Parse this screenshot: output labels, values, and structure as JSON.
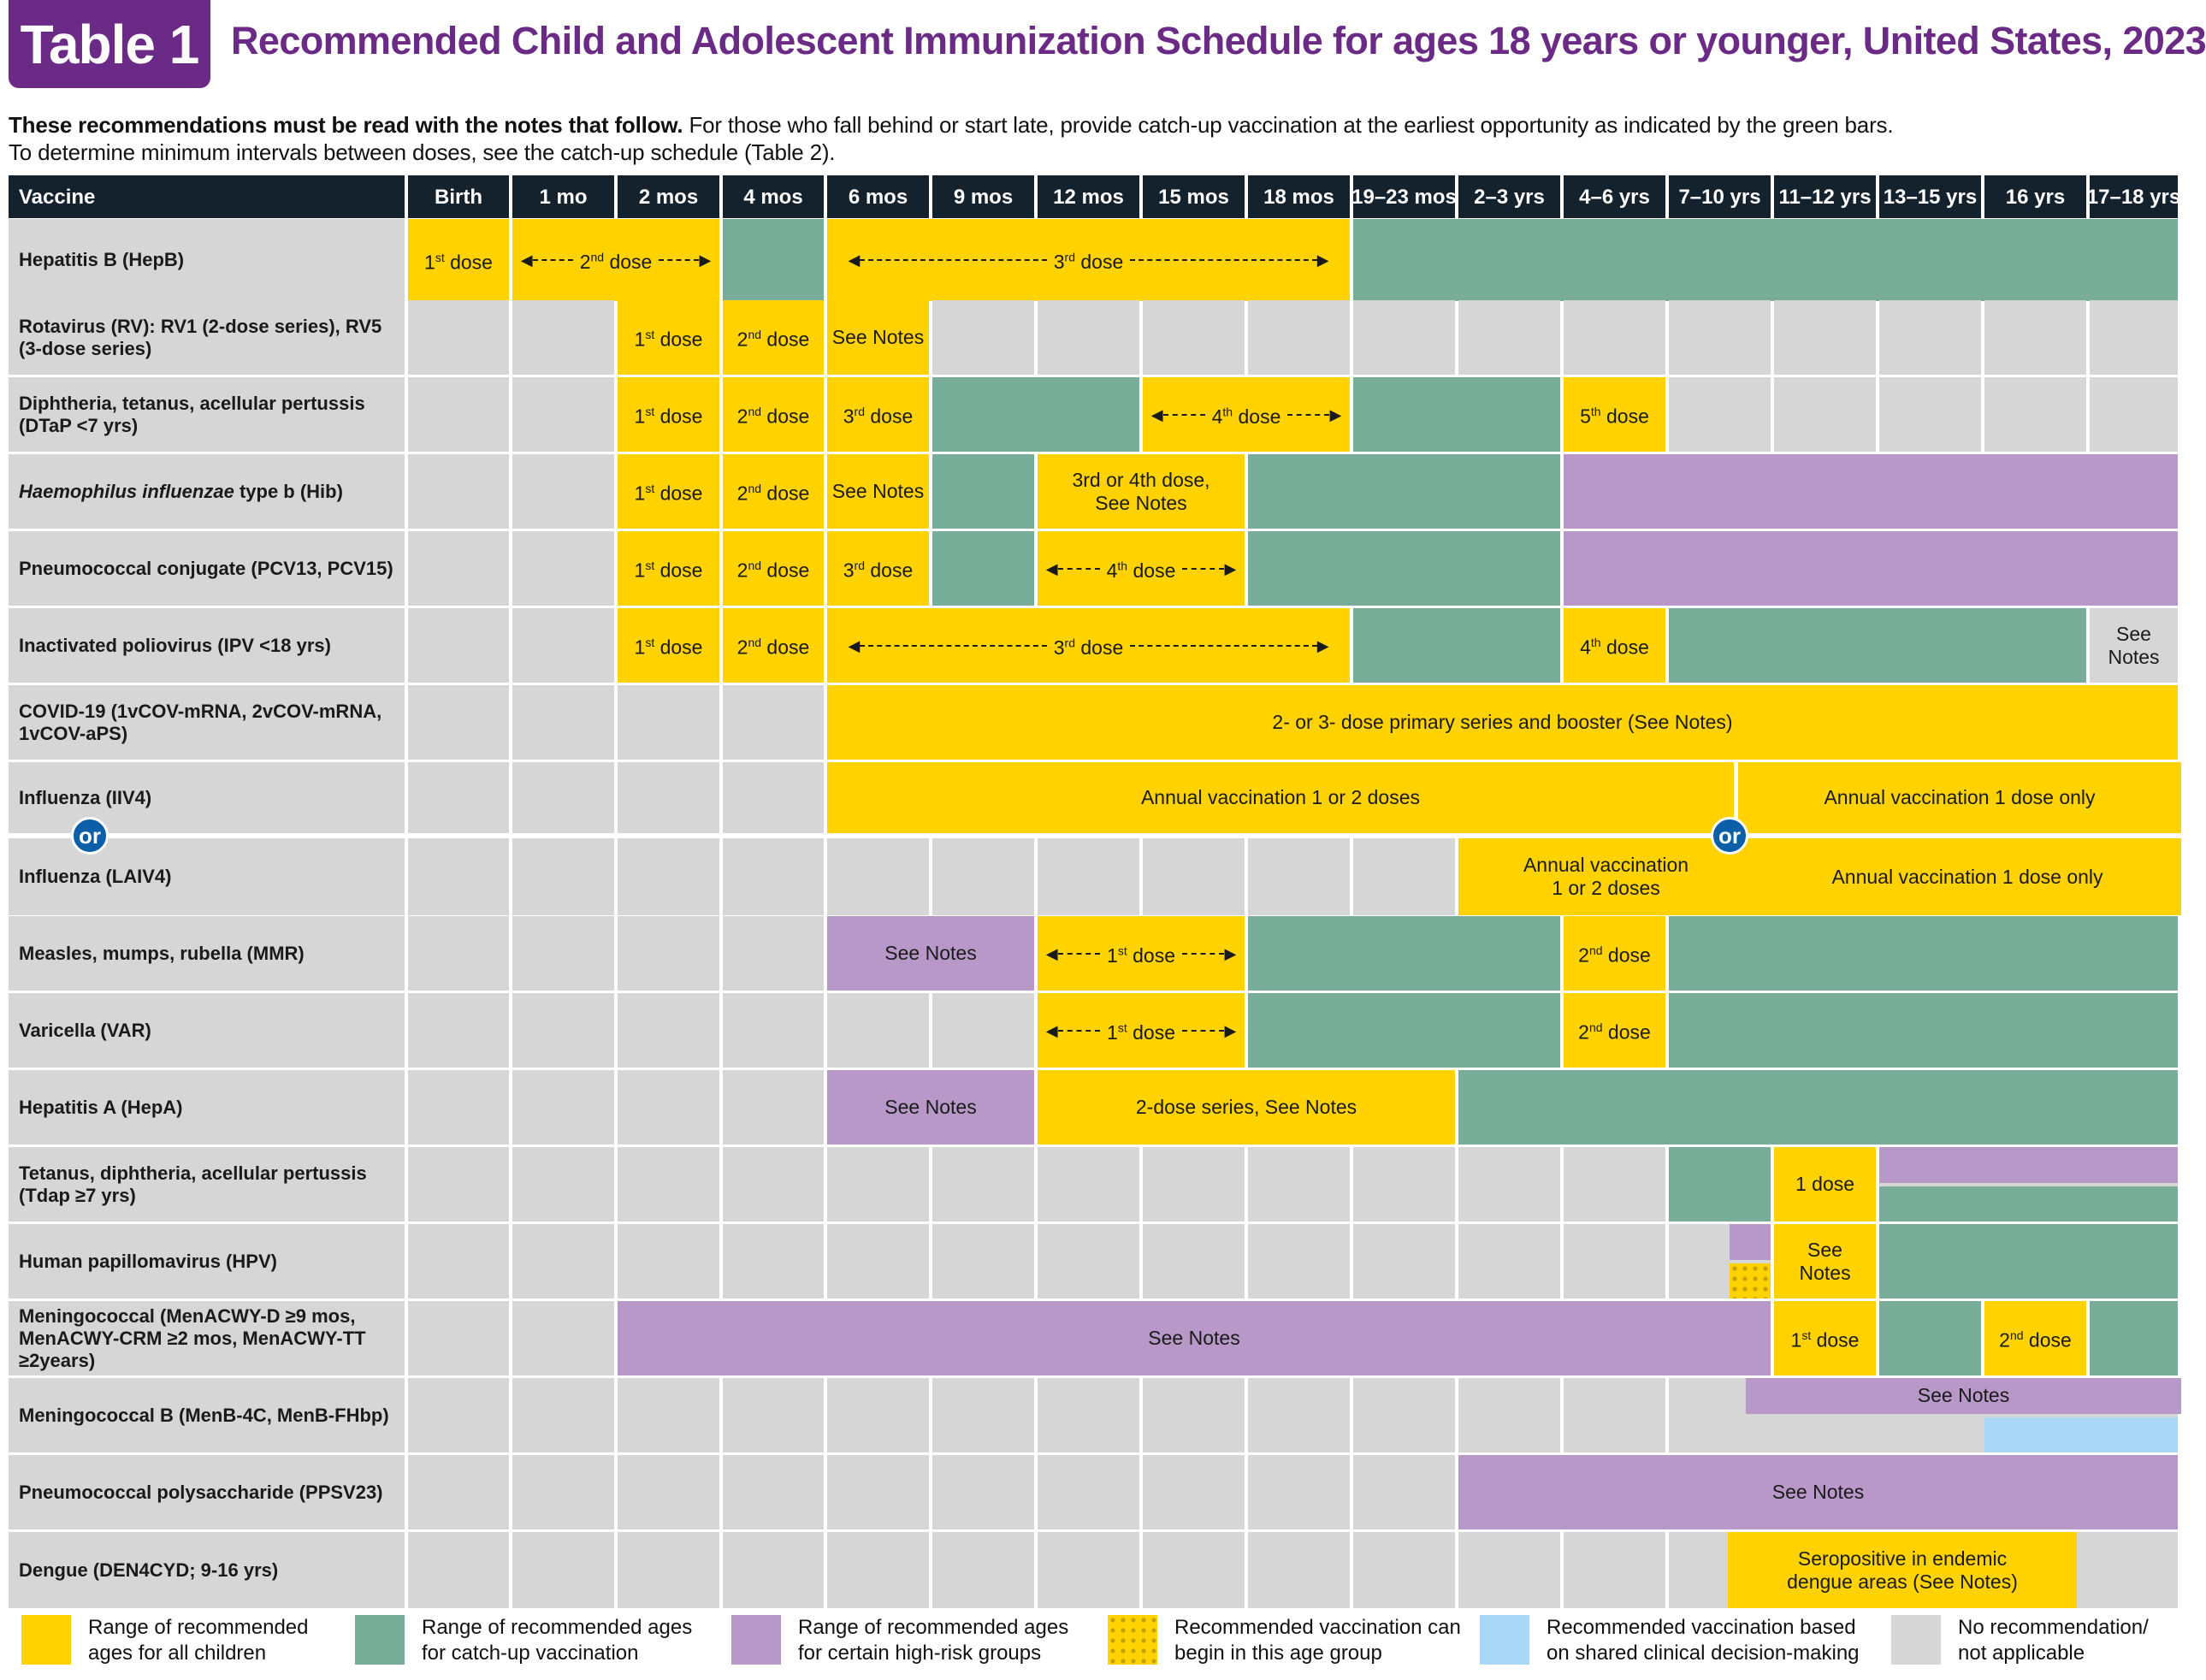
{
  "header": {
    "badge": "Table 1",
    "title": "Recommended Child and Adolescent Immunization Schedule for ages 18 years or younger, United States, 2023",
    "intro_bold": "These recommendations must be read with the notes that follow.",
    "intro_rest": " For those who fall behind or start late, provide catch-up vaccination at the earliest opportunity as indicated by the green bars.",
    "intro_line2": "To determine minimum intervals between doses, see the catch-up schedule (Table 2)."
  },
  "columns": [
    "Vaccine",
    "Birth",
    "1 mo",
    "2 mos",
    "4 mos",
    "6 mos",
    "9 mos",
    "12 mos",
    "15 mos",
    "18 mos",
    "19–23 mos",
    "2–3 yrs",
    "4–6 yrs",
    "7–10 yrs",
    "11–12 yrs",
    "13–15 yrs",
    "16 yrs",
    "17–18 yrs"
  ],
  "vaccines": {
    "hepb": "Hepatitis B (HepB)",
    "rv": "Rotavirus (RV): RV1 (2-dose series), RV5 (3-dose series)",
    "dtap": "Diphtheria, tetanus, acellular pertussis (DTaP <7 yrs)",
    "hib_italic": "Haemophilus influenzae",
    "hib_rest": " type b (Hib)",
    "pcv": "Pneumococcal conjugate (PCV13, PCV15)",
    "ipv": "Inactivated poliovirus (IPV <18 yrs)",
    "covid": "COVID-19 (1vCOV-mRNA, 2vCOV-mRNA, 1vCOV-aPS)",
    "iiv4": "Influenza (IIV4)",
    "laiv4": "Influenza (LAIV4)",
    "mmr": "Measles, mumps, rubella (MMR)",
    "var": "Varicella (VAR)",
    "hepa": "Hepatitis A (HepA)",
    "tdap": "Tetanus, diphtheria, acellular pertussis (Tdap ≥7 yrs)",
    "hpv": "Human papillomavirus (HPV)",
    "menacwy": "Meningococcal (MenACWY-D ≥9 mos, MenACWY-CRM ≥2 mos, MenACWY-TT ≥2years)",
    "menb": "Meningococcal B (MenB-4C, MenB-FHbp)",
    "ppsv": "Pneumococcal polysaccharide (PPSV23)",
    "dengue": "Dengue (DEN4CYD; 9-16 yrs)"
  },
  "labels": {
    "dose1": "1st dose",
    "dose2": "2nd dose",
    "dose3": "3rd dose",
    "dose4": "4th dose",
    "dose5": "5th dose",
    "one_dose": "1 dose",
    "see_notes": "See Notes",
    "hib_34_line1": "3rd or 4th dose,",
    "hib_34_line2": "See Notes",
    "covid_series": "2- or 3- dose primary series and booster (See Notes)",
    "flu_1or2": "Annual vaccination 1 or 2 doses",
    "flu_1only": "Annual vaccination 1 dose only",
    "laiv_1or2_line1": "Annual vaccination",
    "laiv_1or2_line2": "1 or 2 doses",
    "hepa_series": "2-dose series, See Notes",
    "dengue_line1": "Seropositive in endemic",
    "dengue_line2": "dengue areas (See Notes)",
    "or": "or"
  },
  "legend": [
    {
      "text": "Range of recommended ages for all children",
      "color": "#ffd200"
    },
    {
      "text": "Range of recommended ages for catch-up vaccination",
      "color": "#78ae99"
    },
    {
      "text": "Range of recommended ages for certain high-risk groups",
      "color": "#b898c8"
    },
    {
      "text": "Recommended vaccination can begin in this age group",
      "color": "#ffd200"
    },
    {
      "text": "Recommended vaccination based on shared clinical decision-making",
      "color": "#a8d8f5"
    },
    {
      "text": "No recommendation/ not applicable",
      "color": "#d6d6d6"
    }
  ]
}
